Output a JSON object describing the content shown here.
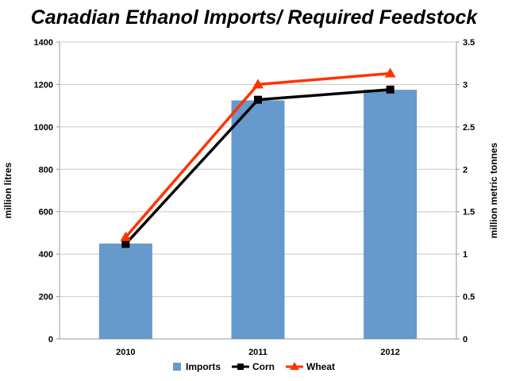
{
  "chart_data": {
    "type": "bar",
    "title": "Canadian Ethanol Imports/ Required Feedstock",
    "categories": [
      "2010",
      "2011",
      "2012"
    ],
    "y_left": {
      "label": "million litres",
      "range": [
        0,
        1400
      ],
      "ticks": [
        "0",
        "200",
        "400",
        "600",
        "800",
        "1000",
        "1200",
        "1400"
      ]
    },
    "y_right": {
      "label": "million metric tonnes",
      "range": [
        0,
        3.5
      ],
      "ticks": [
        "0",
        "0.5",
        "1",
        "1.5",
        "2",
        "2.5",
        "3",
        "3.5"
      ]
    },
    "series": [
      {
        "name": "Imports",
        "type": "bar",
        "axis": "left",
        "color": "#6699cc",
        "values": [
          450,
          1125,
          1175
        ]
      },
      {
        "name": "Corn",
        "type": "line",
        "axis": "right",
        "marker": "square",
        "color": "#000000",
        "values": [
          1.12,
          2.82,
          2.94
        ]
      },
      {
        "name": "Wheat",
        "type": "line",
        "axis": "right",
        "marker": "triangle",
        "color": "#ff3300",
        "values": [
          1.2,
          3.0,
          3.13
        ]
      }
    ],
    "grid": true,
    "legend_position": "bottom"
  }
}
